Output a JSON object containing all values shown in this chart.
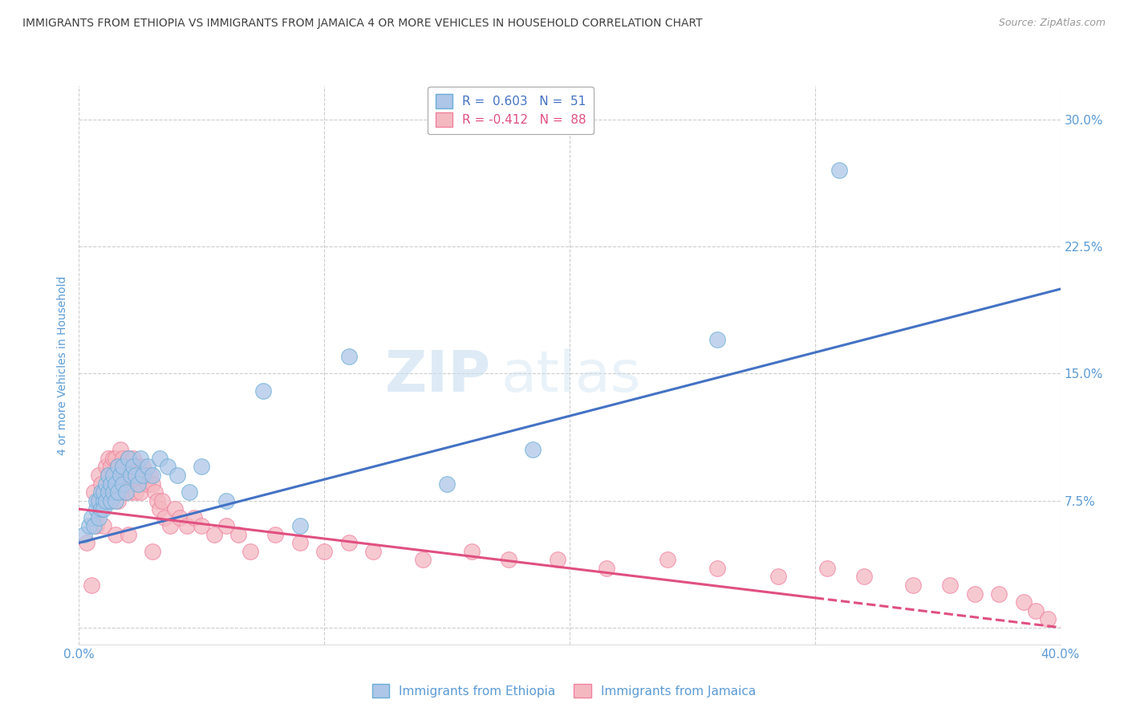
{
  "title": "IMMIGRANTS FROM ETHIOPIA VS IMMIGRANTS FROM JAMAICA 4 OR MORE VEHICLES IN HOUSEHOLD CORRELATION CHART",
  "source": "Source: ZipAtlas.com",
  "ylabel": "4 or more Vehicles in Household",
  "xlim": [
    0.0,
    0.4
  ],
  "ylim": [
    -0.01,
    0.32
  ],
  "xticks": [
    0.0,
    0.1,
    0.2,
    0.3,
    0.4
  ],
  "yticks": [
    0.0,
    0.075,
    0.15,
    0.225,
    0.3
  ],
  "xticklabels": [
    "0.0%",
    "",
    "",
    "",
    "40.0%"
  ],
  "yticklabels": [
    "",
    "7.5%",
    "15.0%",
    "22.5%",
    "30.0%"
  ],
  "ethiopia_color": "#aec6e8",
  "jamaica_color": "#f4b8c1",
  "ethiopia_edge": "#6aaed6",
  "jamaica_edge": "#f082a0",
  "line_ethiopia": "#4472c4",
  "line_jamaica": "#e05080",
  "R_ethiopia": 0.603,
  "N_ethiopia": 51,
  "R_jamaica": -0.412,
  "N_jamaica": 88,
  "watermark_zip": "ZIP",
  "watermark_atlas": "atlas",
  "background_color": "#ffffff",
  "grid_color": "#c8c8c8",
  "title_color": "#404040",
  "axis_tick_color": "#5b9bd5",
  "ylabel_color": "#5b9bd5",
  "ethiopia_label": "Immigrants from Ethiopia",
  "jamaica_label": "Immigrants from Jamaica",
  "eth_x": [
    0.002,
    0.004,
    0.005,
    0.006,
    0.007,
    0.007,
    0.008,
    0.008,
    0.009,
    0.009,
    0.01,
    0.01,
    0.01,
    0.011,
    0.011,
    0.012,
    0.012,
    0.013,
    0.013,
    0.014,
    0.014,
    0.015,
    0.015,
    0.016,
    0.016,
    0.017,
    0.018,
    0.018,
    0.019,
    0.02,
    0.021,
    0.022,
    0.023,
    0.024,
    0.025,
    0.026,
    0.028,
    0.03,
    0.033,
    0.036,
    0.04,
    0.045,
    0.05,
    0.06,
    0.075,
    0.09,
    0.11,
    0.15,
    0.185,
    0.26,
    0.31
  ],
  "eth_y": [
    0.055,
    0.06,
    0.065,
    0.06,
    0.07,
    0.075,
    0.075,
    0.065,
    0.08,
    0.07,
    0.075,
    0.07,
    0.08,
    0.085,
    0.075,
    0.08,
    0.09,
    0.085,
    0.075,
    0.09,
    0.08,
    0.085,
    0.075,
    0.095,
    0.08,
    0.09,
    0.085,
    0.095,
    0.08,
    0.1,
    0.09,
    0.095,
    0.09,
    0.085,
    0.1,
    0.09,
    0.095,
    0.09,
    0.1,
    0.095,
    0.09,
    0.08,
    0.095,
    0.075,
    0.14,
    0.06,
    0.16,
    0.085,
    0.105,
    0.17,
    0.27
  ],
  "jam_x": [
    0.003,
    0.005,
    0.006,
    0.007,
    0.008,
    0.008,
    0.009,
    0.009,
    0.01,
    0.01,
    0.011,
    0.011,
    0.012,
    0.012,
    0.013,
    0.013,
    0.013,
    0.014,
    0.014,
    0.015,
    0.015,
    0.015,
    0.016,
    0.016,
    0.017,
    0.017,
    0.018,
    0.018,
    0.019,
    0.019,
    0.02,
    0.02,
    0.021,
    0.021,
    0.022,
    0.022,
    0.023,
    0.023,
    0.024,
    0.024,
    0.025,
    0.025,
    0.026,
    0.027,
    0.028,
    0.029,
    0.03,
    0.031,
    0.032,
    0.033,
    0.034,
    0.035,
    0.037,
    0.039,
    0.041,
    0.044,
    0.047,
    0.05,
    0.055,
    0.06,
    0.065,
    0.07,
    0.08,
    0.09,
    0.1,
    0.11,
    0.12,
    0.14,
    0.16,
    0.175,
    0.195,
    0.215,
    0.24,
    0.26,
    0.285,
    0.305,
    0.32,
    0.34,
    0.355,
    0.365,
    0.375,
    0.385,
    0.39,
    0.395,
    0.01,
    0.015,
    0.02,
    0.03
  ],
  "jam_y": [
    0.05,
    0.025,
    0.08,
    0.06,
    0.09,
    0.075,
    0.085,
    0.07,
    0.08,
    0.075,
    0.095,
    0.08,
    0.09,
    0.1,
    0.085,
    0.095,
    0.075,
    0.1,
    0.08,
    0.09,
    0.085,
    0.1,
    0.095,
    0.075,
    0.105,
    0.08,
    0.1,
    0.09,
    0.095,
    0.08,
    0.1,
    0.09,
    0.095,
    0.08,
    0.1,
    0.085,
    0.095,
    0.08,
    0.09,
    0.095,
    0.085,
    0.08,
    0.095,
    0.09,
    0.085,
    0.09,
    0.085,
    0.08,
    0.075,
    0.07,
    0.075,
    0.065,
    0.06,
    0.07,
    0.065,
    0.06,
    0.065,
    0.06,
    0.055,
    0.06,
    0.055,
    0.045,
    0.055,
    0.05,
    0.045,
    0.05,
    0.045,
    0.04,
    0.045,
    0.04,
    0.04,
    0.035,
    0.04,
    0.035,
    0.03,
    0.035,
    0.03,
    0.025,
    0.025,
    0.02,
    0.02,
    0.015,
    0.01,
    0.005,
    0.06,
    0.055,
    0.055,
    0.045
  ]
}
